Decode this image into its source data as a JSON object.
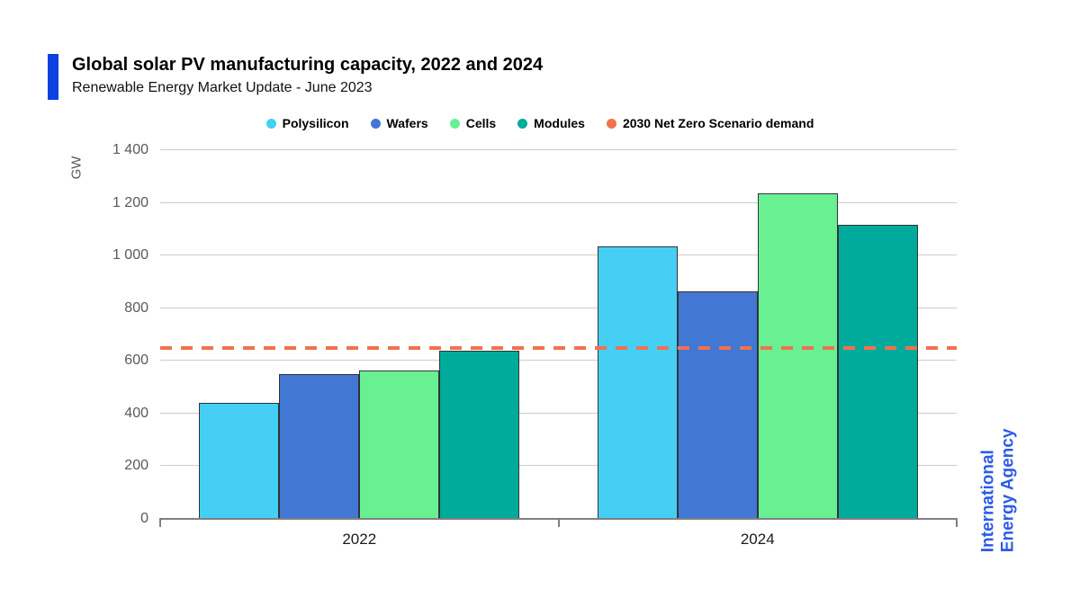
{
  "header": {
    "title": "Global solar PV manufacturing capacity, 2022 and 2024",
    "subtitle": "Renewable Energy Market Update - June 2023"
  },
  "branding": {
    "logo_line1": "International",
    "logo_line2": "Energy Agency",
    "logo_color": "#2C5BE9",
    "accent_color": "#0C41E1"
  },
  "chart_data": {
    "type": "bar",
    "title": "Global solar PV manufacturing capacity, 2022 and 2024",
    "subtitle": "Renewable Energy Market Update - June 2023",
    "unit": "GW",
    "ylabel": "GW",
    "xlabel": "",
    "ylim": [
      0,
      1400
    ],
    "ytick_step": 200,
    "grid": true,
    "legend_position": "top",
    "categories": [
      "2022",
      "2024"
    ],
    "series": [
      {
        "name": "Polysilicon",
        "color": "#45CFF5",
        "values": [
          440,
          1035
        ]
      },
      {
        "name": "Wafers",
        "color": "#4277D4",
        "values": [
          550,
          865
        ]
      },
      {
        "name": "Cells",
        "color": "#69F093",
        "values": [
          565,
          1235
        ]
      },
      {
        "name": "Modules",
        "color": "#00AB9B",
        "values": [
          640,
          1115
        ]
      }
    ],
    "reference_line": {
      "name": "2030 Net Zero Scenario demand",
      "value": 650,
      "color": "#F2714E",
      "style": "dashed"
    },
    "yticks": [
      {
        "value": 0,
        "label": "0"
      },
      {
        "value": 200,
        "label": "200"
      },
      {
        "value": 400,
        "label": "400"
      },
      {
        "value": 600,
        "label": "600"
      },
      {
        "value": 800,
        "label": "800"
      },
      {
        "value": 1000,
        "label": "1 000"
      },
      {
        "value": 1200,
        "label": "1 200"
      },
      {
        "value": 1400,
        "label": "1 400"
      }
    ],
    "colors": {
      "gridline": "#cccccc",
      "axis": "#7f7f7f",
      "tick_text": "#595959"
    }
  }
}
